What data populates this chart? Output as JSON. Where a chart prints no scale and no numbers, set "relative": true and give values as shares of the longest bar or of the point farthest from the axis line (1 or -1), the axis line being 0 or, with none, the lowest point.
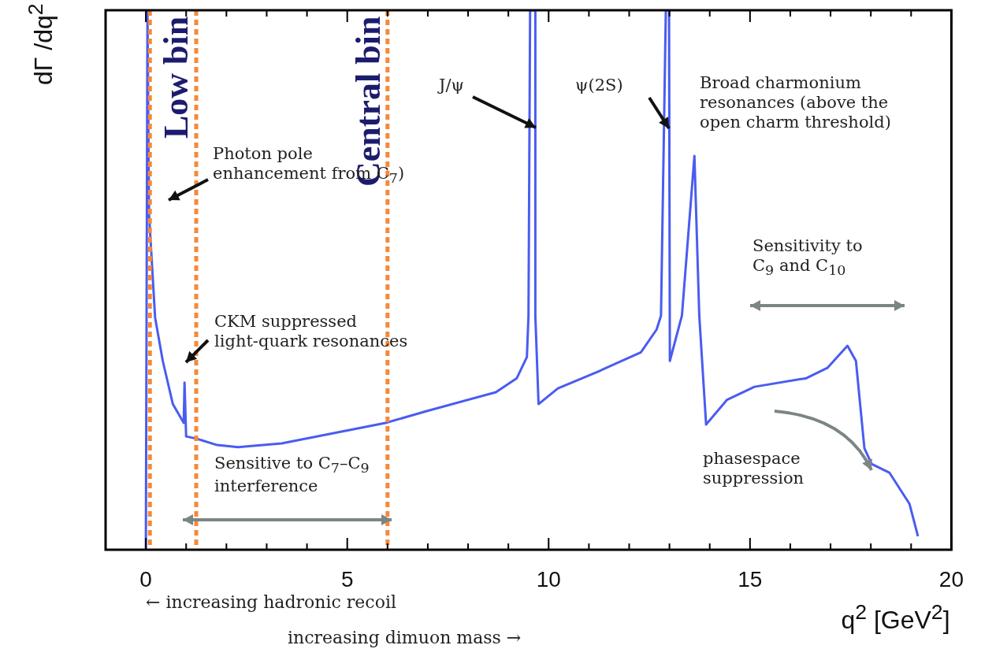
{
  "chart_data": {
    "type": "line",
    "relative": true,
    "xlabel": "q$^{2}$ [GeV$^{2}$]",
    "ylabel": "dΓ /dq$^{2}$",
    "xlim": [
      -1,
      20
    ],
    "xticks": [
      {
        "value": -1,
        "label": null
      },
      0,
      {
        "value": 1,
        "label": null
      },
      {
        "value": 2,
        "label": null
      },
      {
        "value": 3,
        "label": null
      },
      {
        "value": 4,
        "label": null
      },
      5,
      {
        "value": 6,
        "label": null
      },
      {
        "value": 7,
        "label": null
      },
      {
        "value": 8,
        "label": null
      },
      {
        "value": 9,
        "label": null
      },
      10,
      {
        "value": 11,
        "label": null
      },
      {
        "value": 12,
        "label": null
      },
      {
        "value": 13,
        "label": null
      },
      {
        "value": 14,
        "label": null
      },
      15,
      {
        "value": 16,
        "label": null
      },
      {
        "value": 17,
        "label": null
      },
      {
        "value": 18,
        "label": null
      },
      {
        "value": 19,
        "label": null
      },
      20
    ],
    "grid": false,
    "legend": false,
    "marker": "none",
    "line_style": "solid",
    "series": [
      {
        "color": "#4a5cf0",
        "x": [
          0,
          0.04,
          0.08,
          0.23,
          0.42,
          0.67,
          0.94,
          0.96,
          1.0,
          1.25,
          1.77,
          2.29,
          3.37,
          4.66,
          5.95,
          6.97,
          8.69,
          9.21,
          9.46,
          9.5,
          9.54,
          9.67,
          9.67,
          9.75,
          10.23,
          11.25,
          12.29,
          12.68,
          12.79,
          12.91,
          12.99,
          13.01,
          13.31,
          13.62,
          13.74,
          13.91,
          14.43,
          15.11,
          16.4,
          16.92,
          17.42,
          17.63,
          17.84,
          18.02,
          18.46,
          18.96,
          19.17
        ],
        "values": [
          0,
          1,
          0.62,
          0.43,
          0.35,
          0.27,
          0.235,
          0.31,
          0.21,
          0.206,
          0.194,
          0.19,
          0.197,
          0.216,
          0.235,
          0.257,
          0.292,
          0.318,
          0.357,
          0.434,
          1,
          1,
          0.434,
          0.27,
          0.299,
          0.331,
          0.366,
          0.408,
          0.434,
          1,
          1,
          0.35,
          0.434,
          0.73,
          0.434,
          0.232,
          0.278,
          0.302,
          0.318,
          0.337,
          0.378,
          0.35,
          0.188,
          0.159,
          0.143,
          0.085,
          0.025
        ]
      }
    ],
    "ref_lines": [
      {
        "axis": "x",
        "value": 0.1,
        "label": "Low bin",
        "color": "#f5893a",
        "line_style": "dashed"
      },
      {
        "axis": "x",
        "value": 1.25,
        "label": null,
        "color": "#f5893a",
        "line_style": "dashed"
      },
      {
        "axis": "x",
        "value": 6,
        "label": "Central bin",
        "color": "#f5893a",
        "line_style": "dashed"
      }
    ],
    "annotations": [
      "Photon pole\nenhancement from C$_{7}$)",
      "CKM suppressed\nlight-quark resonances",
      "Sensitive to C$_{7}$–C$_{9}$\ninterference",
      "J/ψ",
      "ψ(2S)",
      "Broad charmonium\nresonances (above the\nopen charm threshold)",
      "Sensitivity to\nC$_{9}$ and C$_{10}$",
      "phasespace\nsuppression",
      "← increasing hadronic recoil",
      "increasing dimuon mass →"
    ]
  }
}
